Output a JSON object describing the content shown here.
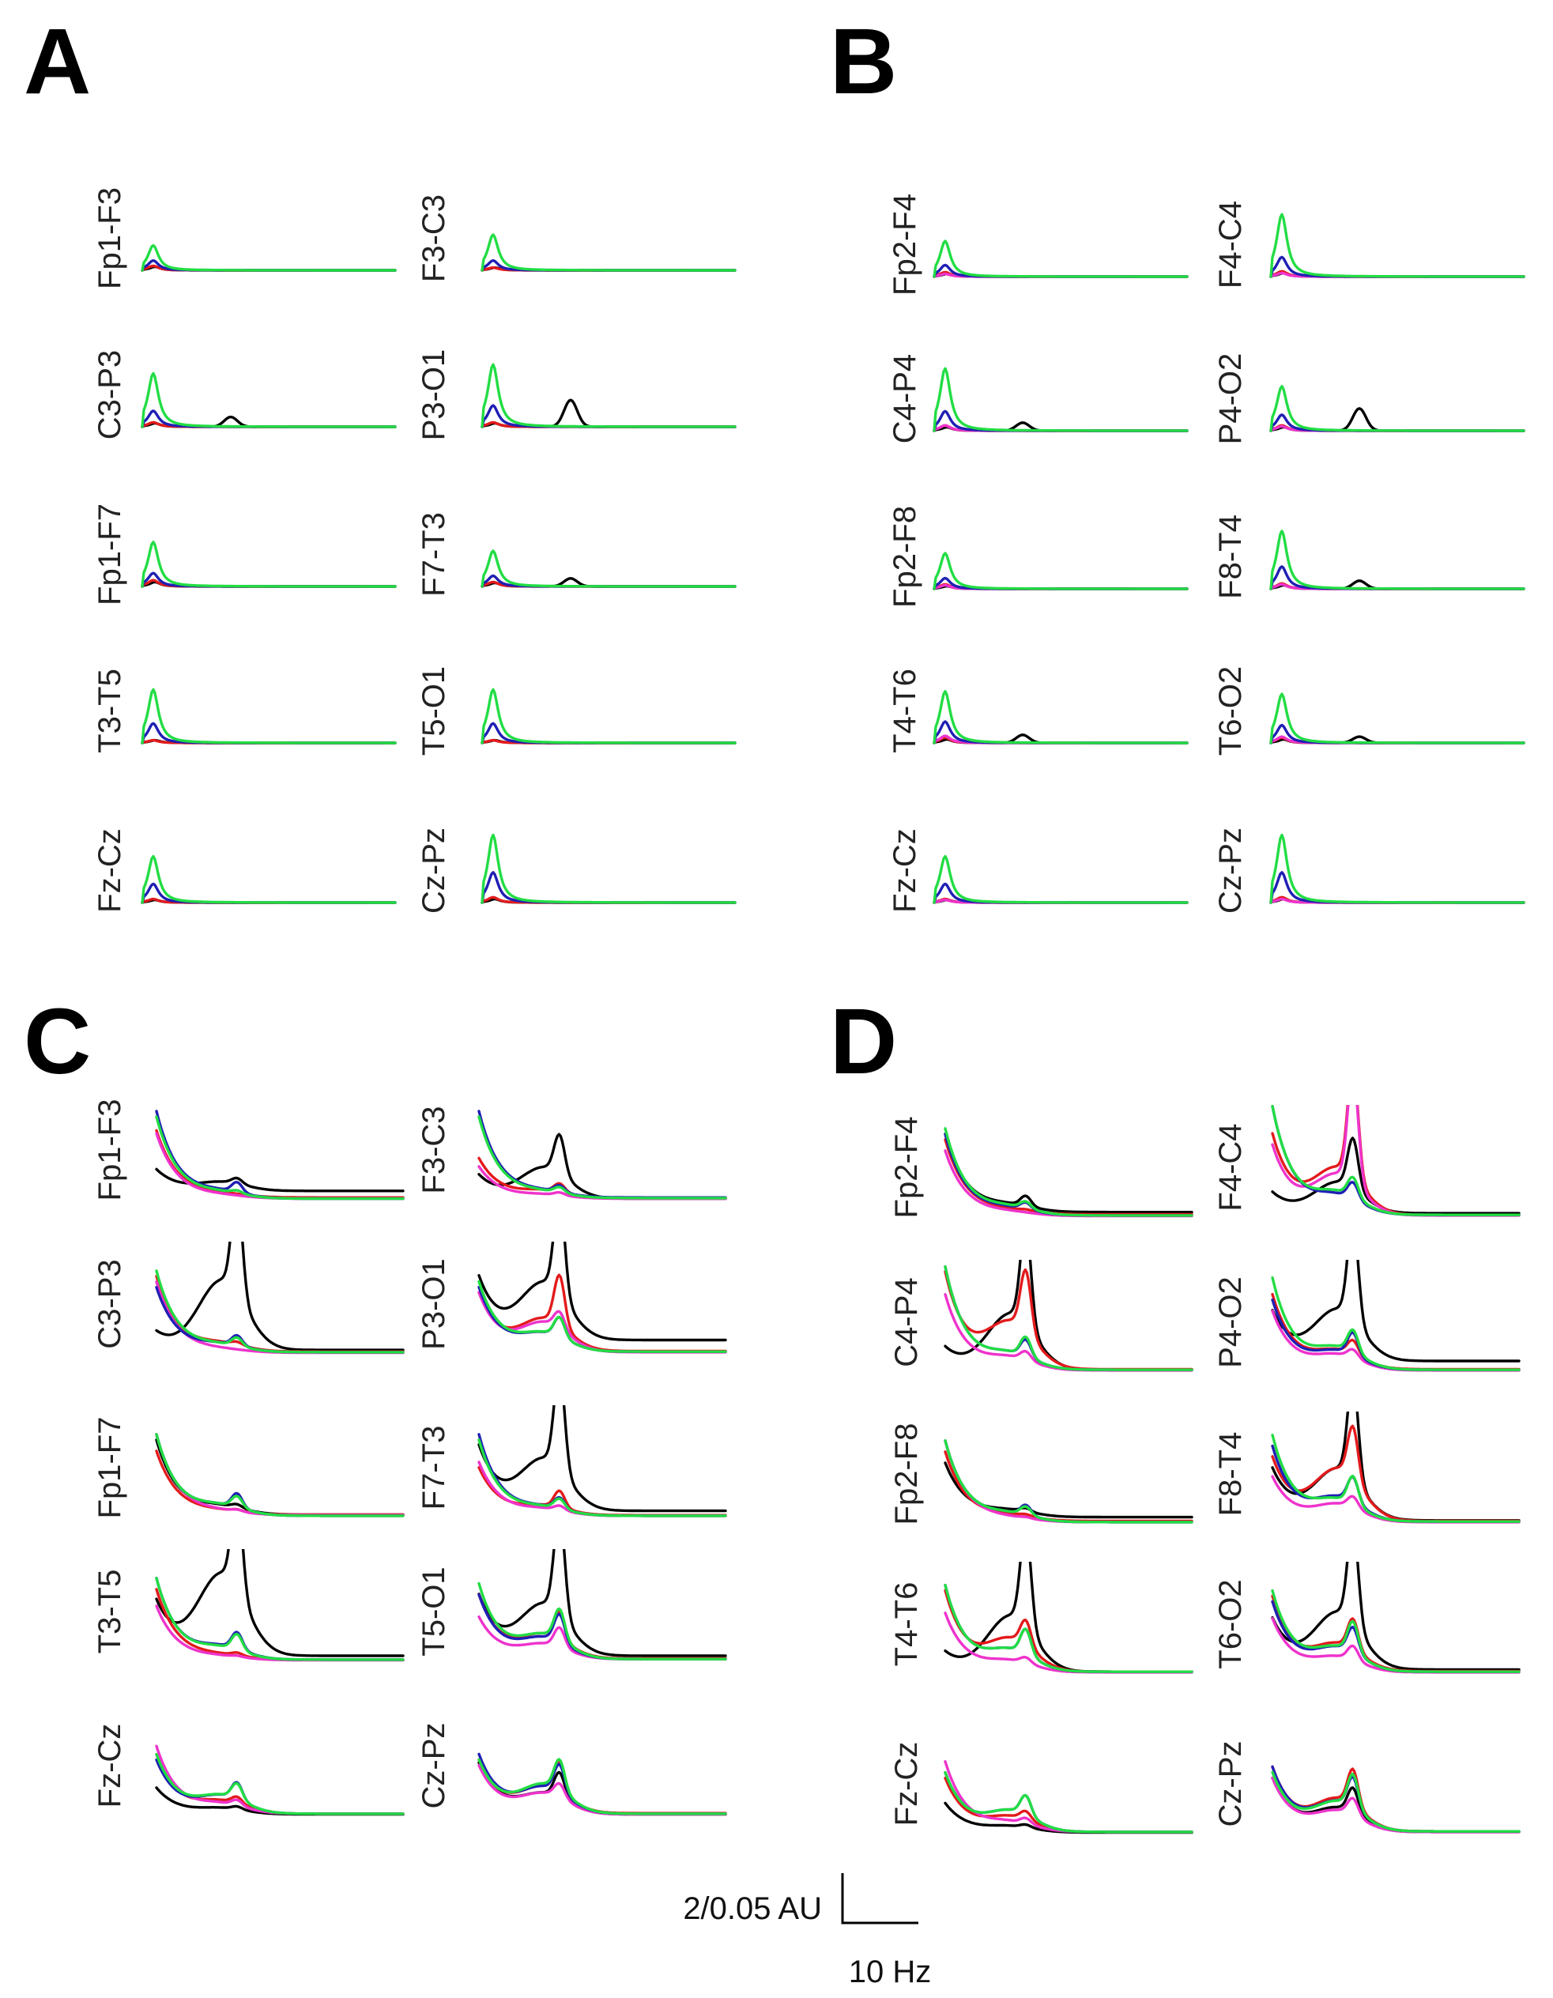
{
  "figure": {
    "scale_bar": {
      "amplitude_label": "2/0.05 AU",
      "frequency_label": "10 Hz"
    }
  },
  "colors": {
    "black": "#000000",
    "red": "#e31a1c",
    "blue": "#1f1fb4",
    "green": "#22dd44",
    "magenta": "#ee33cc"
  },
  "chart_data": [
    {
      "panel": "A",
      "type": "line",
      "hemisphere": "left",
      "zoom": "full",
      "xlabel": "",
      "ylabel": "",
      "channels": [
        {
          "label": "Fp1-F3",
          "col": 0,
          "row": 0,
          "green": 28,
          "blue": 11,
          "red": 5,
          "black": 4,
          "magenta": 0,
          "alpha": 0
        },
        {
          "label": "F3-C3",
          "col": 1,
          "row": 0,
          "green": 40,
          "blue": 11,
          "red": 3,
          "black": 3,
          "magenta": 0,
          "alpha": 0
        },
        {
          "label": "C3-P3",
          "col": 0,
          "row": 1,
          "green": 60,
          "blue": 18,
          "red": 5,
          "black": 4,
          "magenta": 0,
          "alpha": 11
        },
        {
          "label": "P3-O1",
          "col": 1,
          "row": 1,
          "green": 70,
          "blue": 24,
          "red": 5,
          "black": 4,
          "magenta": 0,
          "alpha": 30
        },
        {
          "label": "Fp1-F7",
          "col": 0,
          "row": 2,
          "green": 50,
          "blue": 15,
          "red": 7,
          "black": 5,
          "magenta": 0,
          "alpha": 0
        },
        {
          "label": "F7-T3",
          "col": 1,
          "row": 2,
          "green": 40,
          "blue": 12,
          "red": 5,
          "black": 4,
          "magenta": 0,
          "alpha": 9
        },
        {
          "label": "T3-T5",
          "col": 0,
          "row": 3,
          "green": 60,
          "blue": 22,
          "red": 3,
          "black": 3,
          "magenta": 0,
          "alpha": 0
        },
        {
          "label": "T5-O1",
          "col": 1,
          "row": 3,
          "green": 60,
          "blue": 22,
          "red": 3,
          "black": 3,
          "magenta": 0,
          "alpha": 0
        },
        {
          "label": "Fz-Cz",
          "col": 0,
          "row": 4,
          "green": 52,
          "blue": 21,
          "red": 4,
          "black": 3,
          "magenta": 0,
          "alpha": 0
        },
        {
          "label": "Cz-Pz",
          "col": 1,
          "row": 4,
          "green": 76,
          "blue": 34,
          "red": 6,
          "black": 4,
          "magenta": 0,
          "alpha": 0
        }
      ]
    },
    {
      "panel": "B",
      "type": "line",
      "hemisphere": "right",
      "zoom": "full",
      "xlabel": "",
      "ylabel": "",
      "channels": [
        {
          "label": "Fp2-F4",
          "col": 0,
          "row": 0,
          "green": 40,
          "blue": 13,
          "red": 5,
          "black": 3,
          "magenta": 3,
          "alpha": 0
        },
        {
          "label": "F4-C4",
          "col": 1,
          "row": 0,
          "green": 70,
          "blue": 22,
          "red": 6,
          "black": 4,
          "magenta": 4,
          "alpha": 0
        },
        {
          "label": "C4-P4",
          "col": 0,
          "row": 1,
          "green": 70,
          "blue": 22,
          "red": 6,
          "black": 4,
          "magenta": 6,
          "alpha": 9
        },
        {
          "label": "P4-O2",
          "col": 1,
          "row": 1,
          "green": 50,
          "blue": 18,
          "red": 6,
          "black": 4,
          "magenta": 5,
          "alpha": 25
        },
        {
          "label": "Fp2-F8",
          "col": 0,
          "row": 2,
          "green": 40,
          "blue": 12,
          "red": 5,
          "black": 3,
          "magenta": 4,
          "alpha": 0
        },
        {
          "label": "F8-T4",
          "col": 1,
          "row": 2,
          "green": 65,
          "blue": 25,
          "red": 6,
          "black": 4,
          "magenta": 5,
          "alpha": 9
        },
        {
          "label": "T4-T6",
          "col": 0,
          "row": 3,
          "green": 58,
          "blue": 24,
          "red": 6,
          "black": 4,
          "magenta": 8,
          "alpha": 9
        },
        {
          "label": "T6-O2",
          "col": 1,
          "row": 3,
          "green": 55,
          "blue": 20,
          "red": 6,
          "black": 4,
          "magenta": 7,
          "alpha": 7
        },
        {
          "label": "Fz-Cz",
          "col": 0,
          "row": 4,
          "green": 52,
          "blue": 21,
          "red": 4,
          "black": 3,
          "magenta": 3,
          "alpha": 0
        },
        {
          "label": "Cz-Pz",
          "col": 1,
          "row": 4,
          "green": 76,
          "blue": 34,
          "red": 6,
          "black": 4,
          "magenta": 4,
          "alpha": 0
        }
      ]
    },
    {
      "panel": "C",
      "type": "line",
      "hemisphere": "left",
      "zoom": "magnified",
      "xlabel": "",
      "ylabel": "",
      "channels": [
        {
          "label": "Fp1-F3",
          "col": 0,
          "row": 0,
          "black": [
            0.55,
            0.15,
            0.1,
            0.16
          ],
          "red": [
            1.25,
            0.05,
            0,
            0.04
          ],
          "blue": [
            1.6,
            0.1,
            0.18,
            0.02
          ],
          "green": [
            1.5,
            0.08,
            0.05,
            0.02
          ],
          "magenta": [
            1.2,
            0.04,
            0,
            0.02
          ]
        },
        {
          "label": "F3-C3",
          "col": 1,
          "row": 0,
          "black": [
            0.45,
            0.55,
            0.7,
            0.02
          ],
          "red": [
            0.75,
            0.12,
            0.15,
            0.03
          ],
          "blue": [
            1.6,
            0.08,
            0.12,
            0.04
          ],
          "green": [
            1.5,
            0.08,
            0.1,
            0.03
          ],
          "magenta": [
            0.6,
            0.06,
            0.05,
            0.02
          ]
        },
        {
          "label": "C3-P3",
          "col": 0,
          "row": 1,
          "black": [
            0.4,
            1.25,
            1.9,
            0.07
          ],
          "red": [
            1.4,
            0.12,
            0.05,
            0.04
          ],
          "blue": [
            1.2,
            0.12,
            0.18,
            0.03
          ],
          "green": [
            1.5,
            0.1,
            0.15,
            0.03
          ],
          "magenta": [
            1.3,
            0.04,
            0,
            0.02
          ]
        },
        {
          "label": "P3-O1",
          "col": 1,
          "row": 1,
          "black": [
            1.4,
            1.0,
            1.8,
            0.25
          ],
          "red": [
            1.1,
            0.55,
            0.9,
            0.05
          ],
          "blue": [
            1.2,
            0.3,
            0.35,
            0.04
          ],
          "green": [
            1.3,
            0.3,
            0.35,
            0.04
          ],
          "magenta": [
            1.1,
            0.5,
            0.3,
            0.03
          ]
        },
        {
          "label": "Fp1-F7",
          "col": 0,
          "row": 2,
          "black": [
            1.4,
            0.12,
            0.06,
            0.05
          ],
          "red": [
            1.2,
            0.05,
            0.03,
            0.05
          ],
          "blue": [
            1.5,
            0.15,
            0.25,
            0.03
          ],
          "green": [
            1.5,
            0.15,
            0.2,
            0.03
          ],
          "magenta": [
            1.5,
            0.05,
            0.03,
            0.04
          ]
        },
        {
          "label": "F7-T3",
          "col": 1,
          "row": 2,
          "black": [
            1.3,
            0.9,
            1.8,
            0.12
          ],
          "red": [
            0.9,
            0.15,
            0.3,
            0.04
          ],
          "blue": [
            1.5,
            0.12,
            0.2,
            0.03
          ],
          "green": [
            1.4,
            0.12,
            0.18,
            0.03
          ],
          "magenta": [
            1.0,
            0.1,
            0.08,
            0.03
          ]
        },
        {
          "label": "T3-T5",
          "col": 0,
          "row": 3,
          "black": [
            1.1,
            1.45,
            1.85,
            0.1
          ],
          "red": [
            1.3,
            0.06,
            0.05,
            0.03
          ],
          "blue": [
            1.5,
            0.2,
            0.3,
            0.03
          ],
          "green": [
            1.5,
            0.18,
            0.28,
            0.03
          ],
          "magenta": [
            1.0,
            0.05,
            0.02,
            0.02
          ]
        },
        {
          "label": "T5-O1",
          "col": 1,
          "row": 3,
          "black": [
            1.2,
            0.9,
            1.85,
            0.1
          ],
          "red": [
            1.2,
            0.4,
            0.5,
            0.05
          ],
          "blue": [
            1.2,
            0.35,
            0.5,
            0.04
          ],
          "green": [
            1.4,
            0.4,
            0.55,
            0.04
          ],
          "magenta": [
            0.8,
            0.25,
            0.35,
            0.04
          ]
        },
        {
          "label": "Fz-Cz",
          "col": 0,
          "row": 4,
          "black": [
            0.5,
            0.1,
            0.05,
            0.02
          ],
          "red": [
            1.1,
            0.2,
            0.12,
            0.03
          ],
          "blue": [
            1.0,
            0.3,
            0.3,
            0.03
          ],
          "green": [
            1.1,
            0.3,
            0.28,
            0.03
          ],
          "magenta": [
            1.25,
            0.15,
            0.1,
            0.03
          ]
        },
        {
          "label": "Cz-Pz",
          "col": 1,
          "row": 4,
          "black": [
            0.95,
            0.35,
            0.45,
            0.02
          ],
          "red": [
            1.0,
            0.45,
            0.55,
            0.04
          ],
          "blue": [
            1.1,
            0.45,
            0.5,
            0.03
          ],
          "green": [
            1.0,
            0.5,
            0.55,
            0.03
          ],
          "magenta": [
            0.9,
            0.35,
            0.25,
            0.02
          ]
        }
      ]
    },
    {
      "panel": "D",
      "type": "line",
      "hemisphere": "right",
      "zoom": "magnified",
      "xlabel": "",
      "ylabel": "",
      "channels": [
        {
          "label": "Fp2-F4",
          "col": 0,
          "row": 0,
          "black": [
            1.5,
            0.1,
            0.18,
            0.09
          ],
          "red": [
            1.4,
            0.05,
            0.02,
            0.05
          ],
          "blue": [
            1.5,
            0.1,
            0.12,
            0.03
          ],
          "green": [
            1.6,
            0.12,
            0.12,
            0.03
          ],
          "magenta": [
            1.2,
            0.05,
            0,
            0.02
          ]
        },
        {
          "label": "F4-C4",
          "col": 1,
          "row": 0,
          "black": [
            0.45,
            0.55,
            0.9,
            0.07
          ],
          "red": [
            1.5,
            0.8,
            2.0,
            0.04
          ],
          "blue": [
            2.0,
            0.3,
            0.3,
            0.04
          ],
          "green": [
            2.0,
            0.35,
            0.35,
            0.04
          ],
          "magenta": [
            1.3,
            0.7,
            2.0,
            0.03
          ]
        },
        {
          "label": "C4-P4",
          "col": 0,
          "row": 1,
          "black": [
            0.45,
            1.0,
            1.8,
            0.04
          ],
          "red": [
            1.8,
            0.8,
            1.1,
            0.05
          ],
          "blue": [
            1.9,
            0.25,
            0.3,
            0.04
          ],
          "green": [
            1.9,
            0.25,
            0.35,
            0.04
          ],
          "magenta": [
            1.4,
            0.2,
            0.15,
            0.03
          ]
        },
        {
          "label": "P4-O2",
          "col": 1,
          "row": 1,
          "black": [
            1.1,
            0.9,
            1.8,
            0.2
          ],
          "red": [
            1.4,
            0.3,
            0.25,
            0.05
          ],
          "blue": [
            1.3,
            0.3,
            0.4,
            0.04
          ],
          "green": [
            1.7,
            0.35,
            0.4,
            0.04
          ],
          "magenta": [
            1.1,
            0.25,
            0.15,
            0.03
          ]
        },
        {
          "label": "Fp2-F8",
          "col": 0,
          "row": 2,
          "black": [
            1.1,
            0.1,
            0.06,
            0.12
          ],
          "red": [
            1.3,
            0.08,
            0.03,
            0.05
          ],
          "blue": [
            1.5,
            0.12,
            0.18,
            0.03
          ],
          "green": [
            1.5,
            0.12,
            0.15,
            0.03
          ],
          "magenta": [
            1.5,
            0.05,
            0.02,
            0.03
          ]
        },
        {
          "label": "F8-T4",
          "col": 1,
          "row": 2,
          "black": [
            1.0,
            0.9,
            1.8,
            0.06
          ],
          "red": [
            1.2,
            0.9,
            0.95,
            0.05
          ],
          "blue": [
            1.4,
            0.4,
            0.45,
            0.04
          ],
          "green": [
            1.6,
            0.35,
            0.5,
            0.04
          ],
          "magenta": [
            0.85,
            0.3,
            0.2,
            0.03
          ]
        },
        {
          "label": "T4-T6",
          "col": 0,
          "row": 3,
          "black": [
            0.4,
            1.0,
            1.8,
            0.04
          ],
          "red": [
            1.5,
            0.55,
            0.45,
            0.04
          ],
          "blue": [
            1.6,
            0.35,
            0.45,
            0.04
          ],
          "green": [
            1.6,
            0.35,
            0.45,
            0.04
          ],
          "magenta": [
            1.1,
            0.18,
            0.1,
            0.03
          ]
        },
        {
          "label": "T6-O2",
          "col": 1,
          "row": 3,
          "black": [
            1.0,
            1.0,
            1.8,
            0.08
          ],
          "red": [
            1.4,
            0.45,
            0.55,
            0.05
          ],
          "blue": [
            1.3,
            0.4,
            0.45,
            0.04
          ],
          "green": [
            1.5,
            0.4,
            0.55,
            0.04
          ],
          "magenta": [
            1.0,
            0.25,
            0.25,
            0.03
          ]
        },
        {
          "label": "Fz-Cz",
          "col": 0,
          "row": 4,
          "black": [
            0.55,
            0.1,
            0.05,
            0.02
          ],
          "red": [
            1.0,
            0.25,
            0.15,
            0.03
          ],
          "blue": [
            1.1,
            0.35,
            0.35,
            0.03
          ],
          "green": [
            1.1,
            0.35,
            0.35,
            0.03
          ],
          "magenta": [
            1.3,
            0.15,
            0.1,
            0.03
          ]
        },
        {
          "label": "Cz-Pz",
          "col": 1,
          "row": 4,
          "black": [
            1.0,
            0.4,
            0.45,
            0.03
          ],
          "red": [
            1.2,
            0.55,
            0.65,
            0.04
          ],
          "blue": [
            1.2,
            0.5,
            0.55,
            0.04
          ],
          "green": [
            1.1,
            0.5,
            0.6,
            0.04
          ],
          "magenta": [
            1.0,
            0.35,
            0.3,
            0.03
          ]
        }
      ]
    }
  ]
}
